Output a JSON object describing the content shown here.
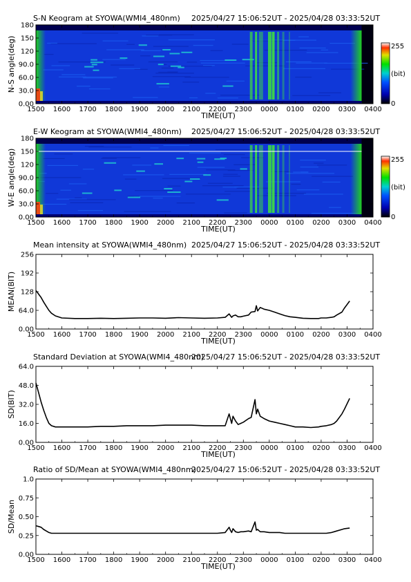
{
  "period": "2025/04/27 15:06:52UT - 2025/04/28 03:33:52UT",
  "time_ticks": [
    "1500",
    "1600",
    "1700",
    "1800",
    "1900",
    "2000",
    "2100",
    "2200",
    "2300",
    "0000",
    "0100",
    "0200",
    "0300",
    "0400"
  ],
  "xlabel": "TIME(UT)",
  "colorbar": {
    "max": "255",
    "min": "0",
    "unit": "(bit)"
  },
  "chart_data": [
    {
      "type": "heatmap",
      "title": "S-N Keogram at SYOWA(WMI4_480nm)",
      "ylabel": "N-S angle(deg)",
      "yticks": [
        "0.00",
        "30.0",
        "60.0",
        "90.0",
        "120",
        "150",
        "180"
      ],
      "ylim": [
        0,
        180
      ],
      "colorscale": "rainbow",
      "clim": [
        0,
        255
      ]
    },
    {
      "type": "heatmap",
      "title": "E-W Keogram at SYOWA(WMI4_480nm)",
      "ylabel": "W-E angle(deg)",
      "yticks": [
        "0.00",
        "30.0",
        "60.0",
        "90.0",
        "120",
        "150",
        "180"
      ],
      "ylim": [
        0,
        180
      ],
      "colorscale": "rainbow",
      "clim": [
        0,
        255
      ]
    },
    {
      "type": "line",
      "title": "Mean intensity at SYOWA(WMI4_480nm)",
      "ylabel": "MEAN(BIT)",
      "yticks": [
        "0.00",
        "64.0",
        "128",
        "192",
        "256"
      ],
      "ylim": [
        0,
        256
      ],
      "x": [
        0,
        0.1,
        0.2,
        0.3,
        0.4,
        0.5,
        0.6,
        0.75,
        1,
        1.5,
        2,
        2.5,
        3,
        3.5,
        4,
        4.5,
        5,
        5.5,
        6,
        6.5,
        7,
        7.3,
        7.45,
        7.5,
        7.55,
        7.6,
        7.7,
        7.8,
        7.9,
        8,
        8.2,
        8.3,
        8.45,
        8.5,
        8.55,
        8.65,
        8.8,
        9,
        9.2,
        9.4,
        9.6,
        9.8,
        10,
        10.3,
        10.6,
        10.9,
        11,
        11.2,
        11.4,
        11.5,
        11.6,
        11.8,
        11.9,
        12.1
      ],
      "values": [
        132,
        120,
        108,
        92,
        78,
        64,
        54,
        45,
        38,
        36,
        36,
        37,
        36,
        37,
        38,
        38,
        37,
        39,
        38,
        37,
        38,
        40,
        52,
        46,
        40,
        45,
        48,
        42,
        42,
        44,
        48,
        58,
        60,
        80,
        62,
        74,
        68,
        64,
        58,
        52,
        46,
        42,
        40,
        37,
        36,
        36,
        38,
        38,
        40,
        42,
        48,
        58,
        72,
        96
      ]
    },
    {
      "type": "line",
      "title": "Standard Deviation at SYOWA(WMI4_480nm)",
      "ylabel": "SD(BIT)",
      "yticks": [
        "0.00",
        "16.0",
        "32.0",
        "48.0",
        "64.0"
      ],
      "ylim": [
        0,
        64
      ],
      "x": [
        0,
        0.1,
        0.2,
        0.3,
        0.4,
        0.5,
        0.6,
        0.75,
        1,
        1.5,
        2,
        2.5,
        3,
        3.5,
        4,
        4.5,
        5,
        5.5,
        6,
        6.5,
        7,
        7.3,
        7.45,
        7.5,
        7.55,
        7.6,
        7.7,
        7.8,
        7.9,
        8,
        8.2,
        8.3,
        8.45,
        8.5,
        8.55,
        8.65,
        8.8,
        9,
        9.2,
        9.4,
        9.6,
        9.8,
        10,
        10.3,
        10.6,
        10.9,
        11,
        11.2,
        11.4,
        11.5,
        11.6,
        11.8,
        11.9,
        12.1
      ],
      "values": [
        50,
        42,
        34,
        27,
        21,
        16,
        14,
        13,
        13,
        13,
        13,
        13.5,
        13.5,
        14,
        14,
        14,
        14.5,
        14.5,
        14.5,
        14,
        14,
        14,
        24,
        20,
        16,
        22,
        18,
        15,
        16,
        17,
        20,
        21,
        36,
        24,
        28,
        22,
        20,
        18,
        17,
        16,
        15,
        14,
        13,
        13,
        12.5,
        13,
        13.5,
        14,
        15,
        16,
        18,
        24,
        28,
        37
      ]
    },
    {
      "type": "line",
      "title": "Ratio of SD/Mean at SYOWA(WMI4_480nm)",
      "ylabel": "SD/Mean",
      "yticks": [
        "0.00",
        "0.25",
        "0.50",
        "0.75",
        "1.0"
      ],
      "ylim": [
        0,
        1
      ],
      "x": [
        0,
        0.1,
        0.2,
        0.3,
        0.4,
        0.5,
        0.6,
        0.75,
        1,
        1.5,
        2,
        2.5,
        3,
        3.5,
        4,
        4.5,
        5,
        5.5,
        6,
        6.5,
        7,
        7.3,
        7.45,
        7.5,
        7.55,
        7.6,
        7.7,
        7.8,
        7.9,
        8,
        8.2,
        8.3,
        8.45,
        8.5,
        8.55,
        8.65,
        8.8,
        9,
        9.2,
        9.4,
        9.6,
        9.8,
        10,
        10.3,
        10.6,
        10.9,
        11,
        11.2,
        11.4,
        11.5,
        11.6,
        11.8,
        11.9,
        12.1
      ],
      "values": [
        0.38,
        0.37,
        0.36,
        0.33,
        0.31,
        0.29,
        0.28,
        0.28,
        0.28,
        0.28,
        0.28,
        0.28,
        0.28,
        0.28,
        0.28,
        0.28,
        0.28,
        0.28,
        0.28,
        0.28,
        0.28,
        0.29,
        0.36,
        0.32,
        0.29,
        0.34,
        0.3,
        0.29,
        0.3,
        0.3,
        0.31,
        0.3,
        0.43,
        0.32,
        0.33,
        0.3,
        0.3,
        0.29,
        0.29,
        0.29,
        0.28,
        0.28,
        0.28,
        0.28,
        0.28,
        0.28,
        0.28,
        0.28,
        0.29,
        0.3,
        0.31,
        0.33,
        0.34,
        0.35
      ]
    }
  ]
}
